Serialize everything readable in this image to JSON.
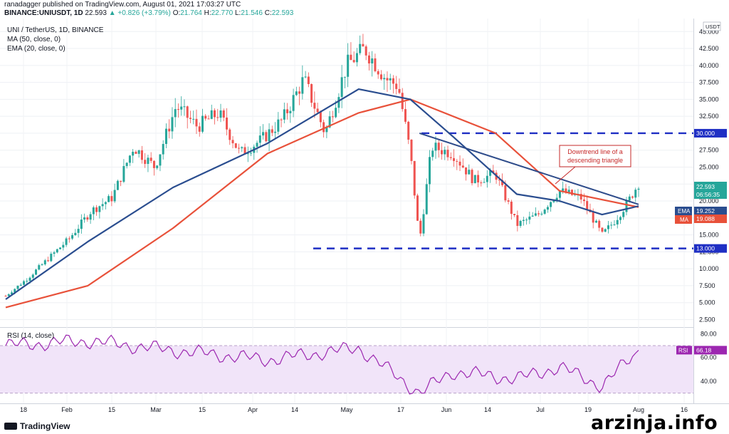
{
  "header": {
    "published_line": "ranadagger published on TradingView.com, August 01, 2021 17:03:27 UTC",
    "symbol": "BINANCE:UNIUSDT, 1D",
    "last": "22.593",
    "change": "▲ +0.826 (+3.79%)",
    "open_label": "O:",
    "open": "21.764",
    "high_label": "H:",
    "high": "22.770",
    "low_label": "L:",
    "low": "21.546",
    "close_label": "C:",
    "close": "22.593"
  },
  "legend": {
    "instrument": "UNI / TetherUS, 1D, BINANCE",
    "ma": "MA (50, close, 0)",
    "ema": "EMA (20, close, 0)",
    "rsi": "RSI (14, close)",
    "currency": "USDT"
  },
  "annotation": {
    "line1": "Downtrend line of a",
    "line2": "descending triangle"
  },
  "price_tags": {
    "last": "22.593",
    "countdown": "06:56:35",
    "ema_label": "EMA",
    "ema_value": "19.252",
    "ma_label": "MA",
    "ma_value": "19.088",
    "resistance": "30.000",
    "support": "13.000",
    "rsi_label": "RSI",
    "rsi_value": "66.18"
  },
  "footer": {
    "brand": "TradingView",
    "watermark": "arzinja.info"
  },
  "colors": {
    "up": "#26a69a",
    "down": "#ef5350",
    "ema": "#2a4d8f",
    "ma": "#e8513a",
    "level": "#1f2fc4",
    "rsi": "#9c27b0",
    "rsi_band": "#f1e4f9",
    "annot": "#c62828"
  },
  "chart_data": {
    "type": "candlestick",
    "title": "UNI / TetherUS, 1D, BINANCE",
    "ylabel": "USDT",
    "x_ticks": [
      "18",
      "Feb",
      "15",
      "Mar",
      "15",
      "Apr",
      "14",
      "May",
      "17",
      "Jun",
      "14",
      "Jul",
      "19",
      "Aug",
      "16"
    ],
    "y_ticks": [
      "2.500",
      "5.000",
      "7.500",
      "10.000",
      "12.500",
      "15.000",
      "17.500",
      "20.000",
      "22.500",
      "25.000",
      "27.500",
      "30.000",
      "32.500",
      "35.000",
      "37.500",
      "40.000",
      "42.500",
      "45.000"
    ],
    "ylim": [
      1.5,
      46.5
    ],
    "levels": [
      {
        "name": "resistance",
        "value": 30.0
      },
      {
        "name": "support",
        "value": 13.0
      }
    ],
    "trendline": {
      "from": [
        "2021-05-21",
        30.0
      ],
      "to": [
        "2021-08-01",
        19.5
      ]
    },
    "close_series": {
      "dates": [
        "2021-01-05",
        "2021-01-12",
        "2021-01-19",
        "2021-01-26",
        "2021-02-02",
        "2021-02-09",
        "2021-02-16",
        "2021-02-23",
        "2021-03-02",
        "2021-03-09",
        "2021-03-16",
        "2021-03-23",
        "2021-03-30",
        "2021-04-06",
        "2021-04-13",
        "2021-04-20",
        "2021-04-27",
        "2021-05-03",
        "2021-05-10",
        "2021-05-14",
        "2021-05-18",
        "2021-05-21",
        "2021-05-25",
        "2021-06-01",
        "2021-06-08",
        "2021-06-15",
        "2021-06-22",
        "2021-06-29",
        "2021-07-06",
        "2021-07-13",
        "2021-07-20",
        "2021-07-24",
        "2021-07-28",
        "2021-08-01"
      ],
      "values": [
        6.0,
        8.5,
        11.5,
        14.5,
        18.5,
        20.5,
        28.0,
        25.0,
        34.0,
        31.0,
        33.0,
        27.0,
        29.0,
        32.0,
        38.0,
        30.0,
        40.0,
        42.5,
        38.0,
        37.0,
        27.0,
        14.0,
        28.0,
        27.0,
        23.0,
        24.0,
        16.5,
        18.0,
        21.5,
        20.5,
        15.0,
        17.0,
        19.5,
        22.593
      ]
    },
    "series": [
      {
        "name": "MA (50, close, 0)",
        "x": [
          "2021-01-05",
          "2021-02-01",
          "2021-03-01",
          "2021-04-01",
          "2021-05-01",
          "2021-05-18",
          "2021-06-15",
          "2021-07-06",
          "2021-08-01"
        ],
        "values": [
          4.3,
          7.5,
          16.0,
          27.0,
          33.0,
          35.0,
          30.0,
          21.5,
          19.088
        ]
      },
      {
        "name": "EMA (20, close, 0)",
        "x": [
          "2021-01-05",
          "2021-02-01",
          "2021-03-01",
          "2021-04-01",
          "2021-05-01",
          "2021-05-18",
          "2021-06-01",
          "2021-06-22",
          "2021-07-06",
          "2021-07-20",
          "2021-08-01"
        ],
        "values": [
          5.5,
          14.0,
          22.0,
          28.5,
          36.5,
          35.0,
          29.5,
          21.0,
          20.0,
          18.0,
          19.252
        ]
      },
      {
        "name": "RSI (14, close)",
        "x": [
          "2021-01-05",
          "2021-02-01",
          "2021-03-01",
          "2021-04-01",
          "2021-05-01",
          "2021-05-21",
          "2021-06-01",
          "2021-06-22",
          "2021-07-06",
          "2021-07-20",
          "2021-08-01"
        ],
        "values": [
          70,
          74,
          66,
          58,
          68,
          30,
          48,
          42,
          52,
          36,
          66.18
        ],
        "ylim": [
          25,
          85
        ],
        "y_ticks": [
          "40.00",
          "60.00",
          "80.00"
        ]
      }
    ]
  }
}
